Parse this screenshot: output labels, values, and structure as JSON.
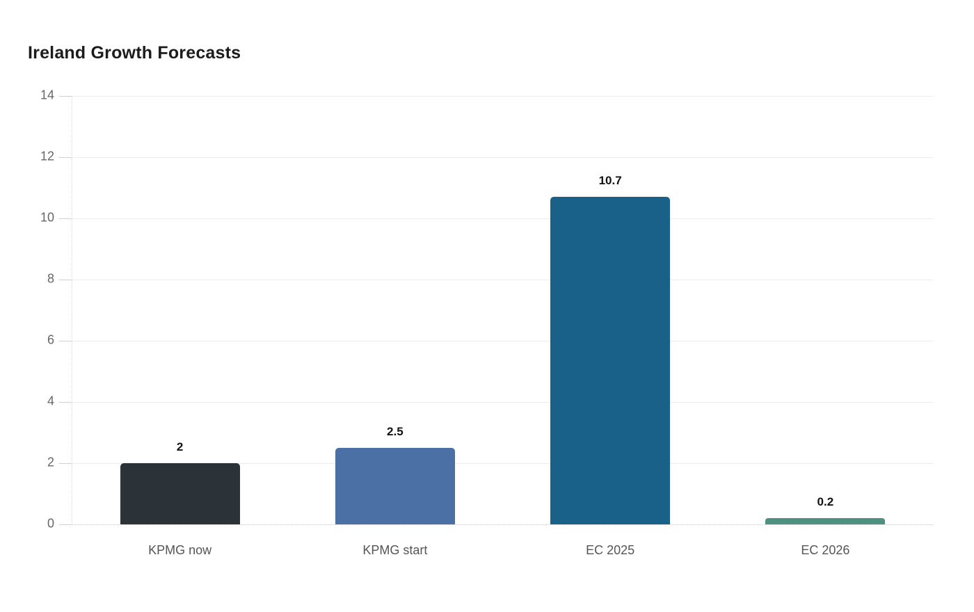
{
  "page": {
    "background": "#ffffff"
  },
  "chart_data": {
    "type": "bar",
    "title": "Ireland Growth Forecasts",
    "categories": [
      "KPMG now",
      "KPMG start",
      "EC 2025",
      "EC 2026"
    ],
    "values": [
      2,
      2.5,
      10.7,
      0.2
    ],
    "value_labels": [
      "2",
      "2.5",
      "10.7",
      "0.2"
    ],
    "bar_colors": [
      "#2b3338",
      "#4b70a6",
      "#1a6189",
      "#4f9181"
    ],
    "xlabel": "",
    "ylabel": "",
    "ylim": [
      0,
      14
    ],
    "yticks": [
      0,
      2,
      4,
      6,
      8,
      10,
      12,
      14
    ],
    "grid": "horizontal",
    "legend_position": "none",
    "title_color": "#1c1c1c",
    "axis_text_color": "#666666",
    "category_text_color": "#555555",
    "value_label_color": "#111111",
    "gridline_color": "#ececec",
    "tick_color": "#cfcfcf"
  }
}
